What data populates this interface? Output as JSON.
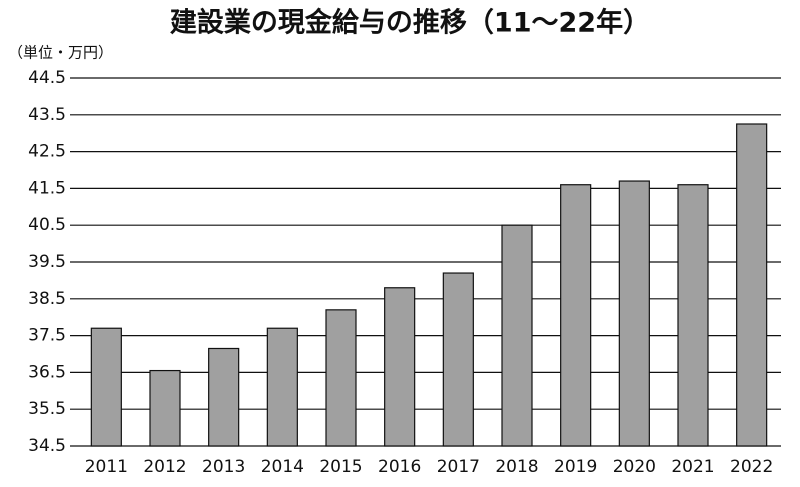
{
  "chart_data": {
    "type": "bar",
    "title": "建設業の現金給与の推移（11〜22年）",
    "y_label": "（単位・万円）",
    "categories": [
      "2011",
      "2012",
      "2013",
      "2014",
      "2015",
      "2016",
      "2017",
      "2018",
      "2019",
      "2020",
      "2021",
      "2022"
    ],
    "values": [
      37.7,
      36.55,
      37.15,
      37.7,
      38.2,
      38.8,
      39.2,
      40.5,
      41.6,
      41.7,
      41.6,
      43.25
    ],
    "color": "#a0a0a0",
    "ylim": [
      34.5,
      44.5
    ],
    "yticks": [
      34.5,
      35.5,
      36.5,
      37.5,
      38.5,
      39.5,
      40.5,
      41.5,
      42.5,
      43.5,
      44.5
    ],
    "grid": true
  }
}
